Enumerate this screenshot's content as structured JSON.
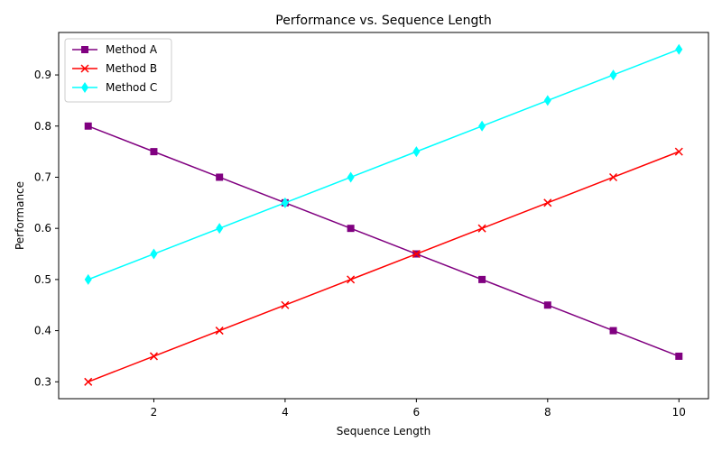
{
  "chart_data": {
    "type": "line",
    "title": "Performance vs. Sequence Length",
    "xlabel": "Sequence Length",
    "ylabel": "Performance",
    "x": [
      1,
      2,
      3,
      4,
      5,
      6,
      7,
      8,
      9,
      10
    ],
    "xlim": [
      0.55,
      10.45
    ],
    "ylim": [
      0.267,
      0.983
    ],
    "xticks": [
      2,
      4,
      6,
      8,
      10
    ],
    "yticks": [
      0.3,
      0.4,
      0.5,
      0.6,
      0.7,
      0.8,
      0.9
    ],
    "grid": false,
    "legend_position": "top-left",
    "series": [
      {
        "name": "Method A",
        "color": "#800080",
        "marker": "square",
        "values": [
          0.8,
          0.75,
          0.7,
          0.65,
          0.6,
          0.55,
          0.5,
          0.45,
          0.4,
          0.35
        ]
      },
      {
        "name": "Method B",
        "color": "#ff0000",
        "marker": "x",
        "values": [
          0.3,
          0.35,
          0.4,
          0.45,
          0.5,
          0.55,
          0.6,
          0.65,
          0.7,
          0.75
        ]
      },
      {
        "name": "Method C",
        "color": "#00ffff",
        "marker": "thin-diamond",
        "values": [
          0.5,
          0.55,
          0.6,
          0.65,
          0.7,
          0.75,
          0.8,
          0.85,
          0.9,
          0.95
        ]
      }
    ]
  }
}
